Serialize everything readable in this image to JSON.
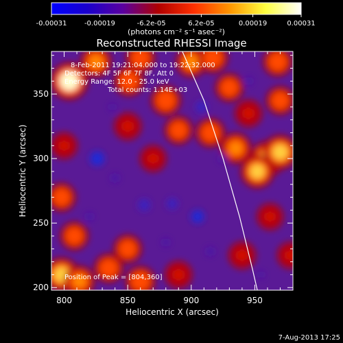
{
  "chart_data": {
    "type": "heatmap",
    "title": "Reconstructed RHESSI Image",
    "xlabel": "Heliocentric X (arcsec)",
    "ylabel": "Heliocentric Y (arcsec)",
    "xlim": [
      790,
      980
    ],
    "ylim": [
      198,
      383
    ],
    "xticks": [
      800,
      850,
      900,
      950
    ],
    "yticks": [
      200,
      250,
      300,
      350
    ],
    "xtick_labels": [
      "800",
      "850",
      "900",
      "950"
    ],
    "ytick_labels": [
      "200",
      "250",
      "300",
      "350"
    ],
    "colorbar": {
      "min": -0.00031,
      "max": 0.00031,
      "tick_labels": [
        "-0.00031",
        "-0.00019",
        "-6.2e-05",
        "6.2e-05",
        "0.00019",
        "0.00031"
      ],
      "units_label": "(photons cm⁻² s⁻¹ asec⁻²)",
      "colors": [
        "#0000ff",
        "#1a00cc",
        "#5a00a0",
        "#b00000",
        "#ff3000",
        "#ff9600",
        "#ffff40",
        "#ffffff"
      ]
    },
    "annotations": {
      "time_range": "8-Feb-2011 19:21:04.000 to 19:22:32.000",
      "detectors": "Detectors: 4F 5F 6F 7F 8F, Att 0",
      "energy_range": "Energy Range: 12.0 - 25.0 keV",
      "total_counts": "Total counts: 1.14E+03",
      "peak_position": "Position of Peak = [804,360]"
    },
    "peak": {
      "x": 804,
      "y": 360
    },
    "limb_curve": [
      {
        "x": 893,
        "y": 383
      },
      {
        "x": 910,
        "y": 345
      },
      {
        "x": 925,
        "y": 300
      },
      {
        "x": 938,
        "y": 255
      },
      {
        "x": 948,
        "y": 215
      },
      {
        "x": 952,
        "y": 198
      }
    ],
    "blobs": [
      {
        "x": 804,
        "y": 360,
        "v": 1.0
      },
      {
        "x": 825,
        "y": 375,
        "v": 0.6
      },
      {
        "x": 851,
        "y": 360,
        "v": 0.55
      },
      {
        "x": 860,
        "y": 378,
        "v": 0.5
      },
      {
        "x": 900,
        "y": 375,
        "v": 0.6
      },
      {
        "x": 917,
        "y": 378,
        "v": 0.55
      },
      {
        "x": 930,
        "y": 355,
        "v": 0.45
      },
      {
        "x": 968,
        "y": 375,
        "v": 0.5
      },
      {
        "x": 880,
        "y": 345,
        "v": 0.55
      },
      {
        "x": 890,
        "y": 322,
        "v": 0.45
      },
      {
        "x": 915,
        "y": 320,
        "v": 0.5
      },
      {
        "x": 945,
        "y": 335,
        "v": 0.4
      },
      {
        "x": 970,
        "y": 345,
        "v": 0.45
      },
      {
        "x": 960,
        "y": 300,
        "v": 0.85
      },
      {
        "x": 970,
        "y": 305,
        "v": 0.8
      },
      {
        "x": 952,
        "y": 290,
        "v": 0.75
      },
      {
        "x": 935,
        "y": 308,
        "v": 0.6
      },
      {
        "x": 850,
        "y": 325,
        "v": 0.4
      },
      {
        "x": 870,
        "y": 300,
        "v": 0.35
      },
      {
        "x": 800,
        "y": 310,
        "v": 0.35
      },
      {
        "x": 798,
        "y": 270,
        "v": 0.45
      },
      {
        "x": 808,
        "y": 240,
        "v": 0.45
      },
      {
        "x": 798,
        "y": 210,
        "v": 0.8
      },
      {
        "x": 812,
        "y": 205,
        "v": 0.6
      },
      {
        "x": 835,
        "y": 215,
        "v": 0.5
      },
      {
        "x": 850,
        "y": 230,
        "v": 0.45
      },
      {
        "x": 860,
        "y": 205,
        "v": 0.55
      },
      {
        "x": 890,
        "y": 210,
        "v": 0.4
      },
      {
        "x": 940,
        "y": 225,
        "v": 0.4
      },
      {
        "x": 962,
        "y": 255,
        "v": 0.35
      },
      {
        "x": 978,
        "y": 225,
        "v": 0.35
      },
      {
        "x": 826,
        "y": 300,
        "v": -0.7
      },
      {
        "x": 840,
        "y": 285,
        "v": -0.35
      },
      {
        "x": 863,
        "y": 264,
        "v": -0.55
      },
      {
        "x": 885,
        "y": 265,
        "v": -0.5
      },
      {
        "x": 905,
        "y": 255,
        "v": -0.6
      },
      {
        "x": 908,
        "y": 340,
        "v": -0.55
      },
      {
        "x": 925,
        "y": 300,
        "v": -0.35
      },
      {
        "x": 945,
        "y": 360,
        "v": -0.3
      },
      {
        "x": 838,
        "y": 340,
        "v": -0.25
      },
      {
        "x": 820,
        "y": 255,
        "v": -0.3
      },
      {
        "x": 880,
        "y": 235,
        "v": -0.3
      },
      {
        "x": 915,
        "y": 228,
        "v": -0.35
      },
      {
        "x": 955,
        "y": 210,
        "v": -0.25
      }
    ]
  },
  "footer": {
    "date": "7-Aug-2013 17:25"
  }
}
